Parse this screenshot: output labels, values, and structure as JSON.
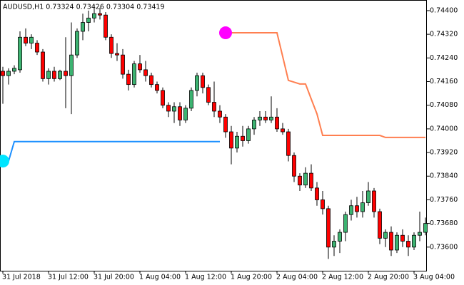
{
  "chart_data": {
    "type": "candlestick",
    "title": "AUDUSD,H1 0.73324 0.73426 0.73304 0.73419",
    "categories": [
      "31 Jul 2018",
      null,
      null,
      null,
      null,
      null,
      null,
      null,
      "31 Jul 12:00",
      null,
      null,
      null,
      null,
      null,
      null,
      null,
      "31 Jul 20:00",
      null,
      null,
      null,
      null,
      null,
      null,
      null,
      "1 Aug 04:00",
      null,
      null,
      null,
      null,
      null,
      null,
      null,
      "1 Aug 12:00",
      null,
      null,
      null,
      null,
      null,
      null,
      null,
      "1 Aug 20:00",
      null,
      null,
      null,
      null,
      null,
      null,
      null,
      "2 Aug 04:00",
      null,
      null,
      null,
      null,
      null,
      null,
      null,
      "2 Aug 12:00",
      null,
      null,
      null,
      null,
      null,
      null,
      null,
      "2 Aug 20:00",
      null,
      null,
      null,
      null,
      null,
      null,
      null,
      "3 Aug 04:00",
      null,
      null
    ],
    "open": [
      0.74195,
      0.7418,
      0.74195,
      0.742,
      0.7431,
      0.7429,
      0.7429,
      0.7426,
      0.7417,
      0.74195,
      0.7417,
      0.74195,
      0.7418,
      0.7425,
      0.7433,
      0.7436,
      0.74375,
      0.7439,
      0.74385,
      0.7431,
      0.74255,
      0.7425,
      0.74185,
      0.7415,
      0.7422,
      0.742,
      0.7418,
      0.7415,
      0.7413,
      0.7408,
      0.7406,
      0.74075,
      0.7403,
      0.7407,
      0.7413,
      0.7418,
      0.7414,
      0.7409,
      0.7406,
      0.7404,
      0.7399,
      0.73935,
      0.73975,
      0.7396,
      0.74,
      0.7403,
      0.7404,
      0.7403,
      0.7404,
      0.74,
      0.7399,
      0.7391,
      0.7384,
      0.7381,
      0.7385,
      0.738,
      0.7376,
      0.7373,
      0.736,
      0.7362,
      0.7365,
      0.7371,
      0.7374,
      0.7372,
      0.7375,
      0.7379,
      0.7372,
      0.7363,
      0.7365,
      0.7359,
      0.7364,
      0.7362,
      0.736,
      0.7364,
      0.7365
    ],
    "high": [
      0.7421,
      0.74205,
      0.74215,
      0.7433,
      0.7434,
      0.7432,
      0.743,
      0.7427,
      0.74205,
      0.7421,
      0.742,
      0.7431,
      0.7436,
      0.7434,
      0.7439,
      0.744,
      0.7442,
      0.7441,
      0.74395,
      0.7432,
      0.7429,
      0.7427,
      0.742,
      0.7423,
      0.7425,
      0.7423,
      0.7419,
      0.7416,
      0.7414,
      0.7409,
      0.7409,
      0.7409,
      0.7408,
      0.7414,
      0.7419,
      0.7419,
      0.7415,
      0.7416,
      0.7408,
      0.7405,
      0.7401,
      0.7399,
      0.7401,
      0.7401,
      0.7404,
      0.7406,
      0.7406,
      0.7411,
      0.7407,
      0.7402,
      0.74,
      0.7392,
      0.7385,
      0.7387,
      0.7388,
      0.7382,
      0.7379,
      0.7374,
      0.7364,
      0.7366,
      0.7372,
      0.7376,
      0.7377,
      0.7379,
      0.7382,
      0.738,
      0.7373,
      0.7366,
      0.7367,
      0.7365,
      0.7366,
      0.7364,
      0.7365,
      0.7372,
      0.737
    ],
    "low": [
      0.74085,
      0.7415,
      0.74185,
      0.7419,
      0.7428,
      0.7427,
      0.7425,
      0.7416,
      0.7415,
      0.7416,
      0.74165,
      0.7407,
      0.7405,
      0.7424,
      0.743,
      0.7433,
      0.7436,
      0.7437,
      0.743,
      0.7424,
      0.7423,
      0.7417,
      0.7413,
      0.7414,
      0.7419,
      0.7416,
      0.7414,
      0.7412,
      0.7407,
      0.7404,
      0.7402,
      0.7401,
      0.7402,
      0.7406,
      0.7411,
      0.7412,
      0.7408,
      0.7404,
      0.7402,
      0.7397,
      0.7388,
      0.7392,
      0.7394,
      0.7395,
      0.7398,
      0.7401,
      0.7402,
      0.7402,
      0.7399,
      0.7398,
      0.7389,
      0.7382,
      0.7379,
      0.738,
      0.7379,
      0.7374,
      0.7371,
      0.7356,
      0.7357,
      0.7358,
      0.7362,
      0.7369,
      0.737,
      0.737,
      0.7374,
      0.737,
      0.7361,
      0.736,
      0.7357,
      0.7358,
      0.736,
      0.7357,
      0.7359,
      0.7362,
      0.7364
    ],
    "close": [
      0.7418,
      0.74195,
      0.74205,
      0.7431,
      0.7429,
      0.7431,
      0.7426,
      0.7417,
      0.74195,
      0.7417,
      0.74195,
      0.7418,
      0.7425,
      0.7433,
      0.7436,
      0.74375,
      0.7439,
      0.74385,
      0.7431,
      0.74255,
      0.7425,
      0.74185,
      0.7415,
      0.7422,
      0.742,
      0.7418,
      0.7415,
      0.7413,
      0.7408,
      0.7406,
      0.74075,
      0.7403,
      0.7407,
      0.7413,
      0.7418,
      0.7414,
      0.7409,
      0.7406,
      0.7404,
      0.7399,
      0.73935,
      0.73975,
      0.7396,
      0.74,
      0.7403,
      0.7404,
      0.7403,
      0.7404,
      0.74,
      0.7399,
      0.7391,
      0.7384,
      0.7381,
      0.7385,
      0.738,
      0.7376,
      0.7373,
      0.736,
      0.7362,
      0.7365,
      0.7371,
      0.7374,
      0.7372,
      0.7375,
      0.7379,
      0.7372,
      0.7363,
      0.7365,
      0.7359,
      0.7364,
      0.7362,
      0.736,
      0.7364,
      0.7365,
      0.7368
    ],
    "up_color": "#3cb371",
    "down_color": "#ff0000",
    "lines": [
      {
        "color": "#1e90ff",
        "marker_color": "#00e5ff",
        "values": [
          0.73891,
          0.73891,
          0.73957,
          0.73957,
          0.73957,
          0.73957,
          0.73957,
          0.73957,
          0.73957,
          0.73957,
          0.73957,
          0.73957,
          0.73957,
          0.73957,
          0.73957,
          0.73957,
          0.73957,
          0.73957,
          0.73957,
          0.73957,
          0.73957,
          0.73957,
          0.73957,
          0.73957,
          0.73957,
          0.73957,
          0.73957,
          0.73957,
          0.73957,
          0.73957,
          0.73957,
          0.73957,
          0.73957,
          0.73957,
          0.73957,
          0.73957,
          0.73957,
          0.73957,
          0.73957,
          null,
          null,
          null,
          null,
          null,
          null,
          null,
          null,
          null,
          null,
          null,
          null,
          null,
          null,
          null,
          null,
          null,
          null,
          null,
          null,
          null,
          null,
          null,
          null,
          null,
          null,
          null,
          null,
          null,
          null,
          null,
          null,
          null,
          null,
          null,
          null
        ]
      },
      {
        "color": "#ff7f50",
        "marker_color": "#ff00ff",
        "values": [
          null,
          null,
          null,
          null,
          null,
          null,
          null,
          null,
          null,
          null,
          null,
          null,
          null,
          null,
          null,
          null,
          null,
          null,
          null,
          null,
          null,
          null,
          null,
          null,
          null,
          null,
          null,
          null,
          null,
          null,
          null,
          null,
          null,
          null,
          null,
          null,
          null,
          null,
          null,
          0.74325,
          0.74325,
          0.74325,
          0.74325,
          0.74325,
          0.74325,
          0.74325,
          0.74325,
          0.74325,
          0.74325,
          0.74245,
          0.74164,
          0.74158,
          0.74152,
          0.74152,
          0.74101,
          0.74051,
          0.73978,
          0.73978,
          0.73978,
          0.73978,
          0.73978,
          0.73978,
          0.73978,
          0.73978,
          0.73978,
          0.73978,
          0.73978,
          0.73971,
          0.73971,
          0.73971,
          0.73971,
          0.73971,
          0.73971,
          0.73971,
          0.73971
        ]
      }
    ],
    "ylim": [
      0.7352,
      0.74436
    ],
    "yticks": [
      {
        "value": 0.744,
        "label": "0.74400"
      },
      {
        "value": 0.7432,
        "label": "0.74320"
      },
      {
        "value": 0.7424,
        "label": "0.74240"
      },
      {
        "value": 0.7416,
        "label": "0.74160"
      },
      {
        "value": 0.7408,
        "label": "0.74080"
      },
      {
        "value": 0.74,
        "label": "0.74000"
      },
      {
        "value": 0.7392,
        "label": "0.73920"
      },
      {
        "value": 0.7384,
        "label": "0.73840"
      },
      {
        "value": 0.7376,
        "label": "0.73760"
      },
      {
        "value": 0.7368,
        "label": "0.73680"
      },
      {
        "value": 0.736,
        "label": "0.73600"
      }
    ]
  }
}
